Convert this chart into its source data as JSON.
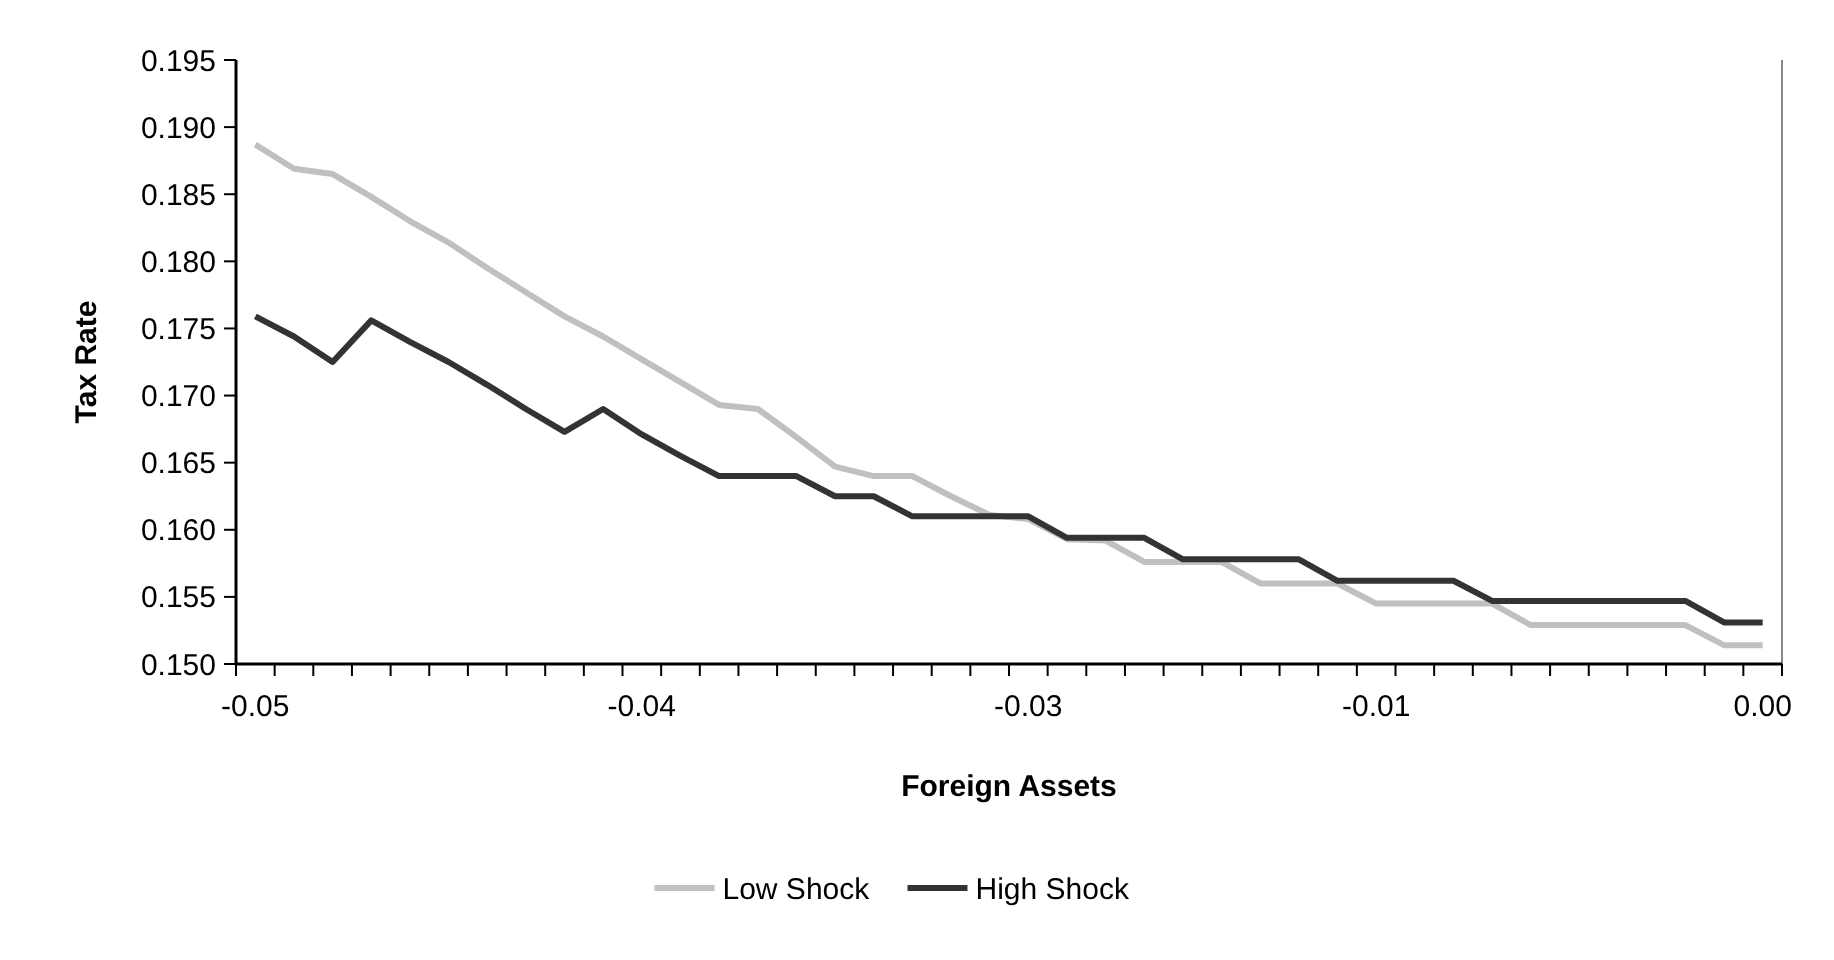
{
  "chart_data": {
    "type": "line",
    "xlabel": "Foreign Assets",
    "ylabel": "Tax Rate",
    "categories": [
      "-0.05",
      null,
      null,
      null,
      null,
      null,
      null,
      null,
      null,
      null,
      "-0.04",
      null,
      null,
      null,
      null,
      null,
      null,
      null,
      null,
      null,
      "-0.03",
      null,
      null,
      null,
      null,
      null,
      null,
      null,
      null,
      "-0.01",
      null,
      null,
      null,
      null,
      null,
      null,
      null,
      null,
      null,
      "0.00"
    ],
    "series": [
      {
        "name": "Low Shock",
        "color": "#c0c0c0",
        "values": [
          0.1887,
          0.1869,
          0.1865,
          0.1848,
          0.183,
          0.1814,
          0.1795,
          0.1777,
          0.1759,
          0.1744,
          0.1727,
          0.171,
          0.1693,
          0.169,
          0.1669,
          0.1647,
          0.164,
          0.164,
          0.1625,
          0.1611,
          0.1608,
          0.1593,
          0.1592,
          0.1576,
          0.1576,
          0.1576,
          0.156,
          0.156,
          0.156,
          0.1545,
          0.1545,
          0.1545,
          0.1545,
          0.1529,
          0.1529,
          0.1529,
          0.1529,
          0.1529,
          0.1514,
          0.1514
        ]
      },
      {
        "name": "High Shock",
        "color": "#333333",
        "values": [
          0.1759,
          0.1744,
          0.1725,
          0.1756,
          0.174,
          0.1725,
          0.1708,
          0.169,
          0.1673,
          0.169,
          0.1671,
          0.1655,
          0.164,
          0.164,
          0.164,
          0.1625,
          0.1625,
          0.161,
          0.161,
          0.161,
          0.161,
          0.1594,
          0.1594,
          0.1594,
          0.1578,
          0.1578,
          0.1578,
          0.1578,
          0.1562,
          0.1562,
          0.1562,
          0.1562,
          0.1547,
          0.1547,
          0.1547,
          0.1547,
          0.1547,
          0.1547,
          0.1531,
          0.1531
        ]
      }
    ],
    "ylim": [
      0.15,
      0.195
    ],
    "yticks": [
      {
        "value": 0.15,
        "label": "0.150"
      },
      {
        "value": 0.155,
        "label": "0.155"
      },
      {
        "value": 0.16,
        "label": "0.160"
      },
      {
        "value": 0.165,
        "label": "0.165"
      },
      {
        "value": 0.17,
        "label": "0.170"
      },
      {
        "value": 0.175,
        "label": "0.175"
      },
      {
        "value": 0.18,
        "label": "0.180"
      },
      {
        "value": 0.185,
        "label": "0.185"
      },
      {
        "value": 0.19,
        "label": "0.190"
      },
      {
        "value": 0.195,
        "label": "0.195"
      }
    ],
    "grid": false,
    "legend": "bottom",
    "marker": "none",
    "line_style": "solid"
  }
}
